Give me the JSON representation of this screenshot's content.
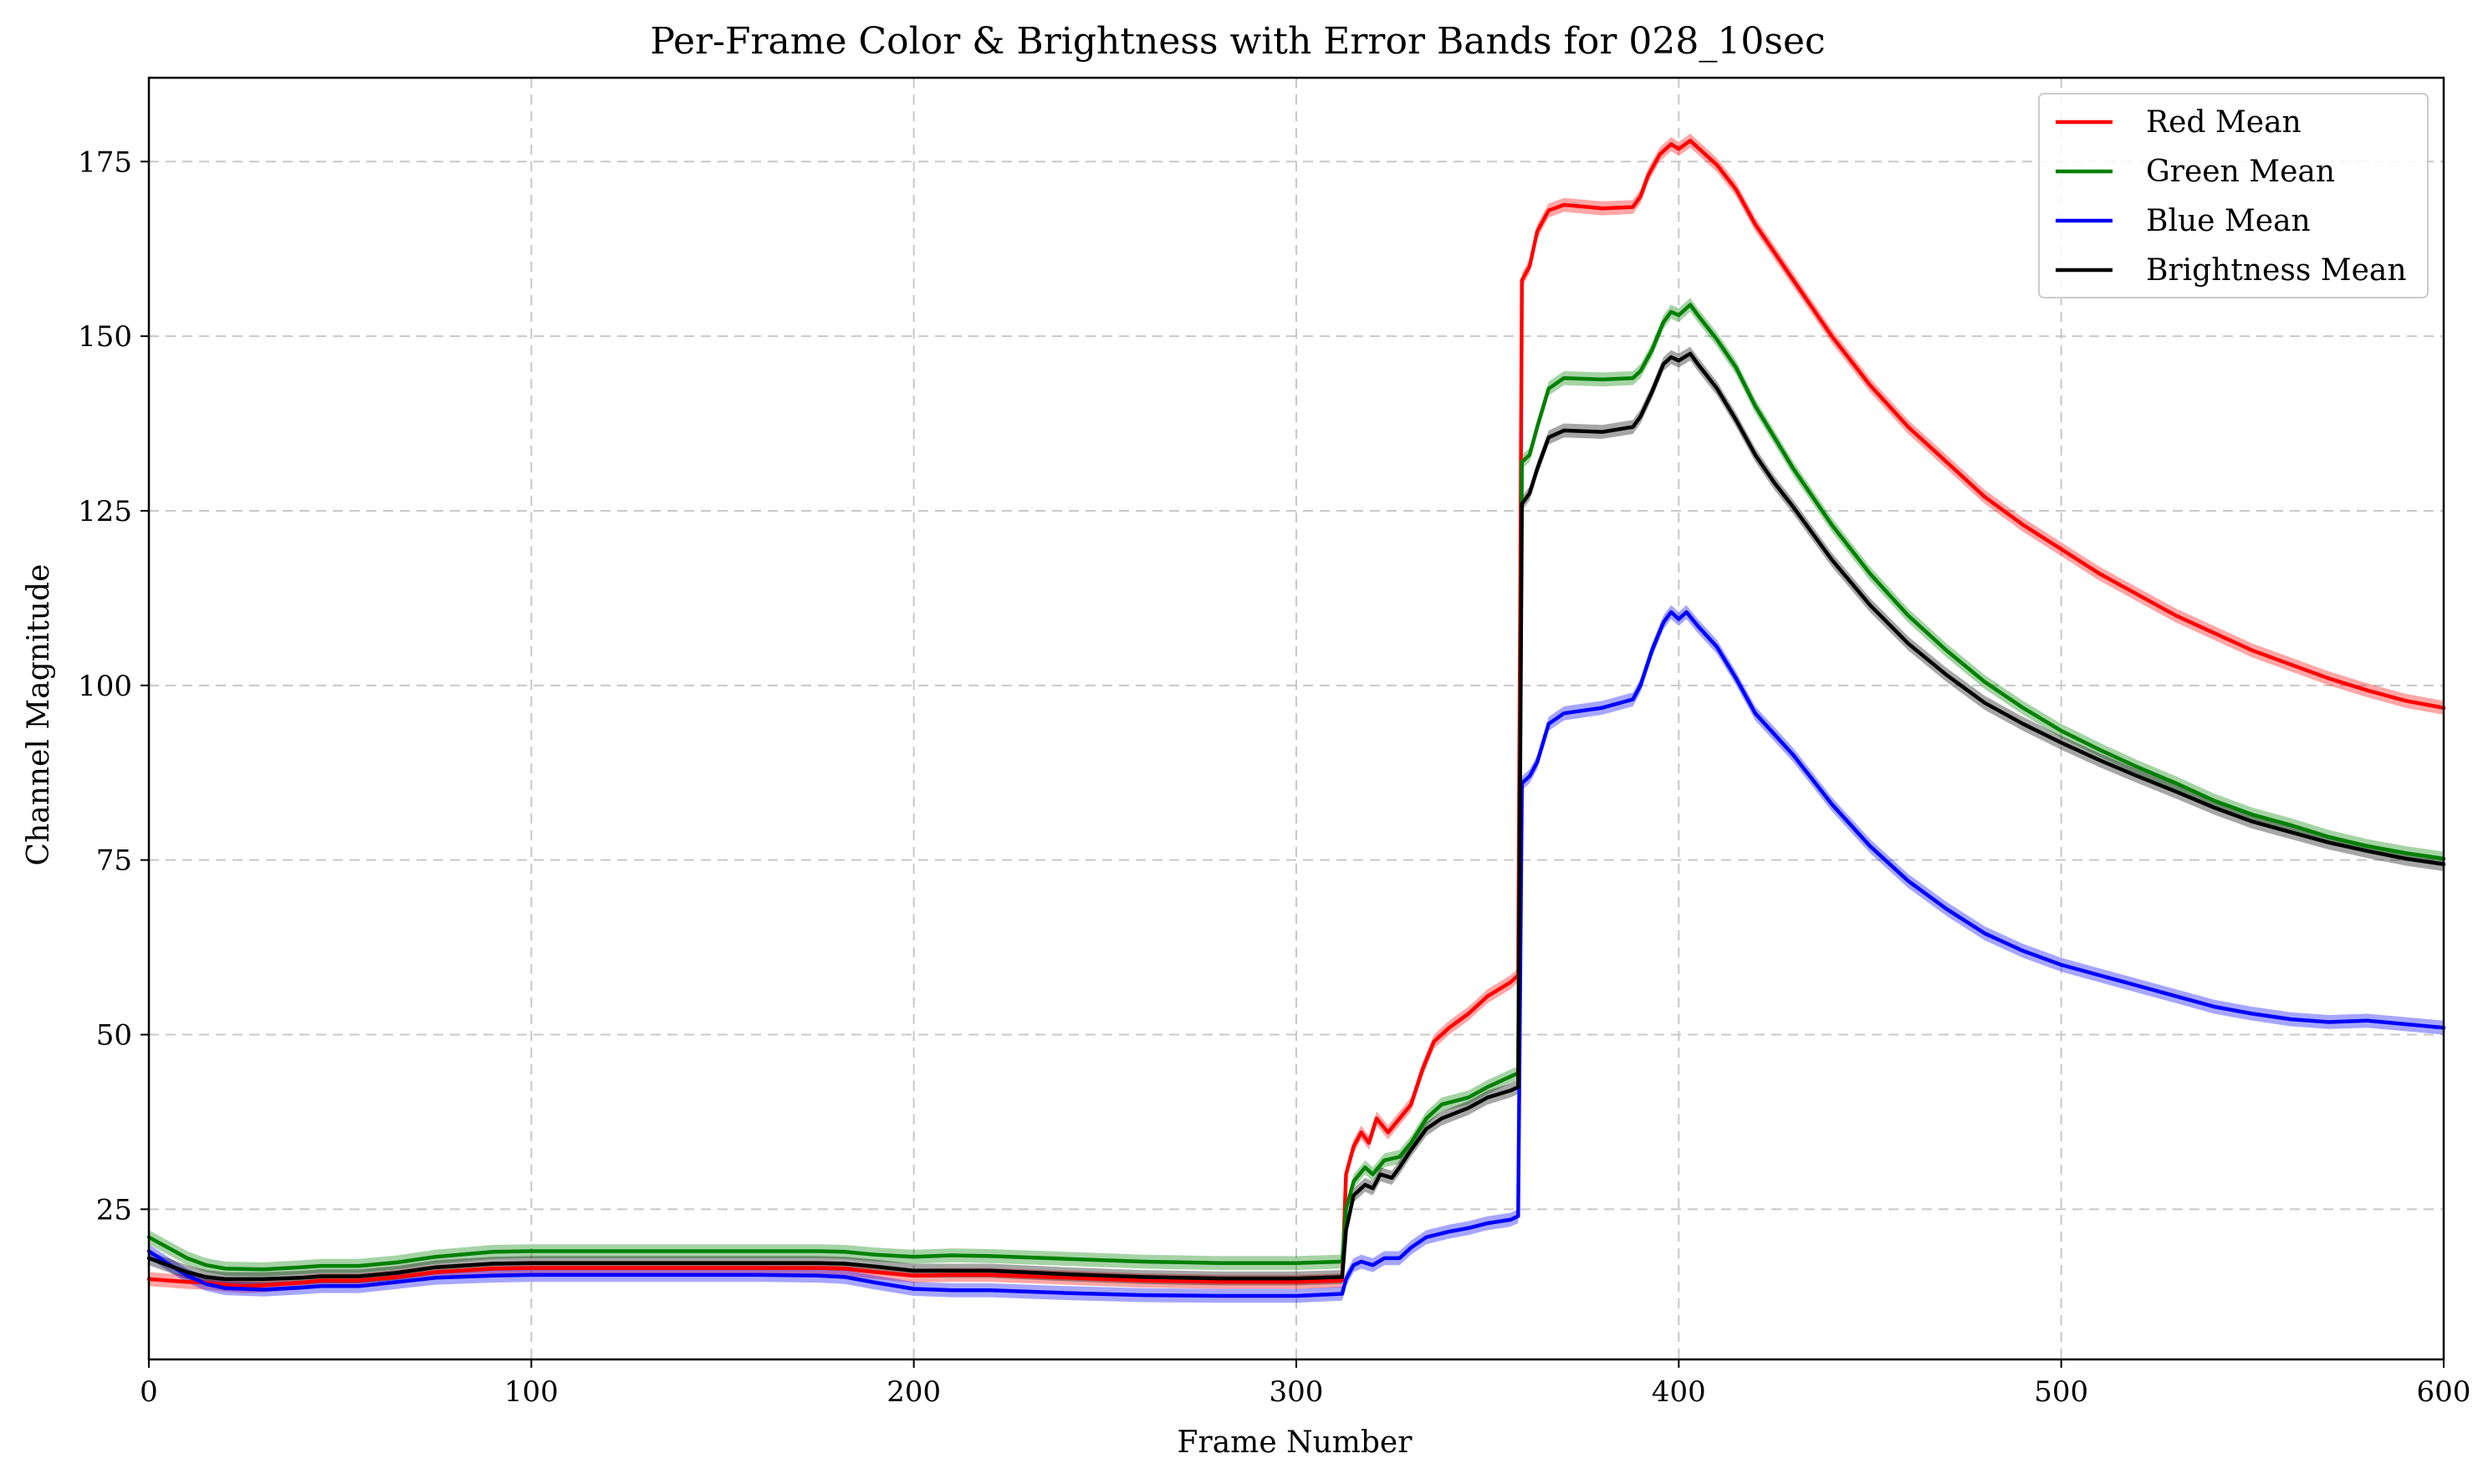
{
  "chart_data": {
    "type": "line",
    "title": "Per-Frame Color & Brightness with Error Bands for 028_10sec",
    "xlabel": "Frame Number",
    "ylabel": "Channel Magnitude",
    "xlim": [
      0,
      600
    ],
    "ylim": [
      3.5,
      187
    ],
    "x_ticks": [
      0,
      100,
      200,
      300,
      400,
      500,
      600
    ],
    "y_ticks": [
      25,
      50,
      75,
      100,
      125,
      150,
      175
    ],
    "grid": true,
    "legend_position": "top-right",
    "error_band_halfwidth": 1.0,
    "series": [
      {
        "name": "Red Mean",
        "color": "#ff0000",
        "points": [
          [
            0,
            15.0
          ],
          [
            5,
            14.8
          ],
          [
            10,
            14.6
          ],
          [
            15,
            14.5
          ],
          [
            20,
            14.2
          ],
          [
            25,
            14.0
          ],
          [
            30,
            14.1
          ],
          [
            40,
            14.5
          ],
          [
            45,
            14.8
          ],
          [
            55,
            14.8
          ],
          [
            65,
            15.3
          ],
          [
            75,
            16.0
          ],
          [
            90,
            16.5
          ],
          [
            100,
            16.6
          ],
          [
            130,
            16.6
          ],
          [
            160,
            16.6
          ],
          [
            175,
            16.6
          ],
          [
            182,
            16.5
          ],
          [
            190,
            16.0
          ],
          [
            200,
            15.5
          ],
          [
            210,
            15.6
          ],
          [
            220,
            15.6
          ],
          [
            240,
            15.2
          ],
          [
            260,
            14.8
          ],
          [
            280,
            14.6
          ],
          [
            300,
            14.6
          ],
          [
            312,
            14.8
          ],
          [
            313,
            30.0
          ],
          [
            315,
            34.0
          ],
          [
            317,
            36.0
          ],
          [
            319,
            34.5
          ],
          [
            321,
            38.0
          ],
          [
            324,
            36.0
          ],
          [
            327,
            38.0
          ],
          [
            330,
            40.0
          ],
          [
            333,
            45.0
          ],
          [
            336,
            49.0
          ],
          [
            340,
            51.0
          ],
          [
            345,
            53.0
          ],
          [
            350,
            55.5
          ],
          [
            356,
            57.5
          ],
          [
            358,
            58.5
          ],
          [
            359,
            158.0
          ],
          [
            361,
            160.0
          ],
          [
            363,
            165.0
          ],
          [
            366,
            168.0
          ],
          [
            370,
            168.8
          ],
          [
            380,
            168.3
          ],
          [
            388,
            168.5
          ],
          [
            390,
            170.0
          ],
          [
            392,
            173.0
          ],
          [
            395,
            176.0
          ],
          [
            398,
            177.5
          ],
          [
            400,
            176.8
          ],
          [
            403,
            178.0
          ],
          [
            405,
            177.0
          ],
          [
            410,
            174.5
          ],
          [
            415,
            171.0
          ],
          [
            420,
            166.0
          ],
          [
            425,
            162.0
          ],
          [
            430,
            158.0
          ],
          [
            440,
            150.0
          ],
          [
            450,
            143.0
          ],
          [
            460,
            137.0
          ],
          [
            470,
            132.0
          ],
          [
            480,
            127.0
          ],
          [
            490,
            123.0
          ],
          [
            500,
            119.5
          ],
          [
            510,
            116.0
          ],
          [
            520,
            113.0
          ],
          [
            530,
            110.0
          ],
          [
            540,
            107.5
          ],
          [
            550,
            105.0
          ],
          [
            560,
            103.0
          ],
          [
            570,
            101.0
          ],
          [
            580,
            99.3
          ],
          [
            590,
            97.8
          ],
          [
            600,
            96.8
          ]
        ]
      },
      {
        "name": "Green Mean",
        "color": "#008000",
        "points": [
          [
            0,
            21.0
          ],
          [
            5,
            19.5
          ],
          [
            10,
            18.0
          ],
          [
            15,
            17.0
          ],
          [
            20,
            16.5
          ],
          [
            30,
            16.4
          ],
          [
            40,
            16.7
          ],
          [
            45,
            16.9
          ],
          [
            55,
            16.9
          ],
          [
            65,
            17.4
          ],
          [
            75,
            18.2
          ],
          [
            90,
            18.9
          ],
          [
            100,
            19.0
          ],
          [
            130,
            19.0
          ],
          [
            160,
            19.0
          ],
          [
            175,
            19.0
          ],
          [
            182,
            18.9
          ],
          [
            190,
            18.5
          ],
          [
            200,
            18.2
          ],
          [
            210,
            18.4
          ],
          [
            220,
            18.3
          ],
          [
            240,
            17.9
          ],
          [
            260,
            17.5
          ],
          [
            280,
            17.3
          ],
          [
            300,
            17.3
          ],
          [
            312,
            17.5
          ],
          [
            313,
            25.0
          ],
          [
            315,
            29.0
          ],
          [
            318,
            31.0
          ],
          [
            320,
            30.0
          ],
          [
            323,
            32.0
          ],
          [
            327,
            32.5
          ],
          [
            330,
            34.5
          ],
          [
            334,
            38.0
          ],
          [
            338,
            40.0
          ],
          [
            345,
            41.0
          ],
          [
            350,
            42.5
          ],
          [
            356,
            44.0
          ],
          [
            358,
            44.5
          ],
          [
            359,
            132.0
          ],
          [
            361,
            133.0
          ],
          [
            363,
            137.0
          ],
          [
            366,
            142.5
          ],
          [
            370,
            144.0
          ],
          [
            380,
            143.8
          ],
          [
            388,
            144.0
          ],
          [
            390,
            145.0
          ],
          [
            393,
            148.0
          ],
          [
            396,
            152.0
          ],
          [
            398,
            153.5
          ],
          [
            400,
            153.0
          ],
          [
            403,
            154.5
          ],
          [
            405,
            153.0
          ],
          [
            410,
            149.5
          ],
          [
            415,
            145.5
          ],
          [
            420,
            140.0
          ],
          [
            425,
            135.5
          ],
          [
            430,
            131.0
          ],
          [
            440,
            123.0
          ],
          [
            450,
            116.0
          ],
          [
            460,
            110.0
          ],
          [
            470,
            105.0
          ],
          [
            480,
            100.5
          ],
          [
            490,
            96.8
          ],
          [
            500,
            93.5
          ],
          [
            510,
            90.8
          ],
          [
            520,
            88.3
          ],
          [
            530,
            86.0
          ],
          [
            540,
            83.5
          ],
          [
            550,
            81.5
          ],
          [
            560,
            80.0
          ],
          [
            570,
            78.3
          ],
          [
            580,
            77.0
          ],
          [
            590,
            76.0
          ],
          [
            600,
            75.2
          ]
        ]
      },
      {
        "name": "Blue Mean",
        "color": "#0000ff",
        "points": [
          [
            0,
            19.0
          ],
          [
            5,
            17.2
          ],
          [
            10,
            15.5
          ],
          [
            15,
            14.3
          ],
          [
            20,
            13.7
          ],
          [
            30,
            13.5
          ],
          [
            40,
            13.8
          ],
          [
            45,
            14.0
          ],
          [
            55,
            14.0
          ],
          [
            65,
            14.6
          ],
          [
            75,
            15.2
          ],
          [
            90,
            15.5
          ],
          [
            100,
            15.6
          ],
          [
            130,
            15.6
          ],
          [
            160,
            15.6
          ],
          [
            175,
            15.5
          ],
          [
            182,
            15.3
          ],
          [
            190,
            14.5
          ],
          [
            200,
            13.6
          ],
          [
            210,
            13.4
          ],
          [
            220,
            13.4
          ],
          [
            240,
            13.0
          ],
          [
            260,
            12.7
          ],
          [
            280,
            12.6
          ],
          [
            300,
            12.6
          ],
          [
            312,
            12.9
          ],
          [
            313,
            15.0
          ],
          [
            315,
            17.0
          ],
          [
            317,
            17.5
          ],
          [
            320,
            17.0
          ],
          [
            323,
            18.0
          ],
          [
            327,
            18.0
          ],
          [
            330,
            19.5
          ],
          [
            334,
            21.0
          ],
          [
            340,
            21.8
          ],
          [
            345,
            22.3
          ],
          [
            350,
            23.0
          ],
          [
            356,
            23.5
          ],
          [
            358,
            24.0
          ],
          [
            359,
            86.0
          ],
          [
            361,
            87.0
          ],
          [
            363,
            89.0
          ],
          [
            366,
            94.5
          ],
          [
            370,
            96.0
          ],
          [
            380,
            96.8
          ],
          [
            388,
            98.0
          ],
          [
            390,
            100.0
          ],
          [
            393,
            105.0
          ],
          [
            396,
            109.0
          ],
          [
            398,
            110.5
          ],
          [
            400,
            109.5
          ],
          [
            402,
            110.5
          ],
          [
            405,
            108.5
          ],
          [
            410,
            105.5
          ],
          [
            415,
            101.0
          ],
          [
            420,
            96.0
          ],
          [
            425,
            93.0
          ],
          [
            430,
            90.0
          ],
          [
            440,
            83.0
          ],
          [
            450,
            77.0
          ],
          [
            460,
            72.0
          ],
          [
            470,
            68.0
          ],
          [
            480,
            64.5
          ],
          [
            490,
            62.0
          ],
          [
            500,
            60.0
          ],
          [
            510,
            58.5
          ],
          [
            520,
            57.0
          ],
          [
            530,
            55.5
          ],
          [
            540,
            54.0
          ],
          [
            550,
            53.0
          ],
          [
            560,
            52.2
          ],
          [
            570,
            51.8
          ],
          [
            580,
            52.0
          ],
          [
            590,
            51.5
          ],
          [
            600,
            51.0
          ]
        ]
      },
      {
        "name": "Brightness Mean",
        "color": "#000000",
        "points": [
          [
            0,
            18.0
          ],
          [
            5,
            17.0
          ],
          [
            10,
            16.0
          ],
          [
            15,
            15.3
          ],
          [
            20,
            15.0
          ],
          [
            30,
            15.0
          ],
          [
            40,
            15.2
          ],
          [
            45,
            15.4
          ],
          [
            55,
            15.4
          ],
          [
            65,
            15.9
          ],
          [
            75,
            16.7
          ],
          [
            90,
            17.2
          ],
          [
            100,
            17.3
          ],
          [
            130,
            17.3
          ],
          [
            160,
            17.3
          ],
          [
            175,
            17.3
          ],
          [
            182,
            17.2
          ],
          [
            190,
            16.8
          ],
          [
            200,
            16.2
          ],
          [
            210,
            16.2
          ],
          [
            220,
            16.2
          ],
          [
            240,
            15.7
          ],
          [
            260,
            15.3
          ],
          [
            280,
            15.1
          ],
          [
            300,
            15.1
          ],
          [
            312,
            15.3
          ],
          [
            313,
            22.0
          ],
          [
            315,
            27.0
          ],
          [
            318,
            28.5
          ],
          [
            320,
            28.0
          ],
          [
            322,
            30.0
          ],
          [
            325,
            29.5
          ],
          [
            327,
            31.0
          ],
          [
            330,
            33.5
          ],
          [
            334,
            36.5
          ],
          [
            338,
            38.0
          ],
          [
            345,
            39.5
          ],
          [
            350,
            41.0
          ],
          [
            356,
            42.0
          ],
          [
            358,
            42.5
          ],
          [
            359,
            126.0
          ],
          [
            361,
            127.5
          ],
          [
            363,
            131.0
          ],
          [
            366,
            135.5
          ],
          [
            370,
            136.5
          ],
          [
            380,
            136.3
          ],
          [
            388,
            137.0
          ],
          [
            390,
            138.5
          ],
          [
            393,
            142.0
          ],
          [
            396,
            146.0
          ],
          [
            398,
            147.0
          ],
          [
            400,
            146.5
          ],
          [
            403,
            147.5
          ],
          [
            405,
            146.0
          ],
          [
            410,
            142.5
          ],
          [
            415,
            138.0
          ],
          [
            420,
            133.0
          ],
          [
            425,
            129.0
          ],
          [
            430,
            125.5
          ],
          [
            440,
            118.0
          ],
          [
            450,
            111.5
          ],
          [
            460,
            106.0
          ],
          [
            470,
            101.5
          ],
          [
            480,
            97.5
          ],
          [
            490,
            94.5
          ],
          [
            500,
            91.8
          ],
          [
            510,
            89.3
          ],
          [
            520,
            87.0
          ],
          [
            530,
            84.8
          ],
          [
            540,
            82.5
          ],
          [
            550,
            80.5
          ],
          [
            560,
            79.0
          ],
          [
            570,
            77.5
          ],
          [
            580,
            76.3
          ],
          [
            590,
            75.2
          ],
          [
            600,
            74.4
          ]
        ]
      }
    ]
  }
}
